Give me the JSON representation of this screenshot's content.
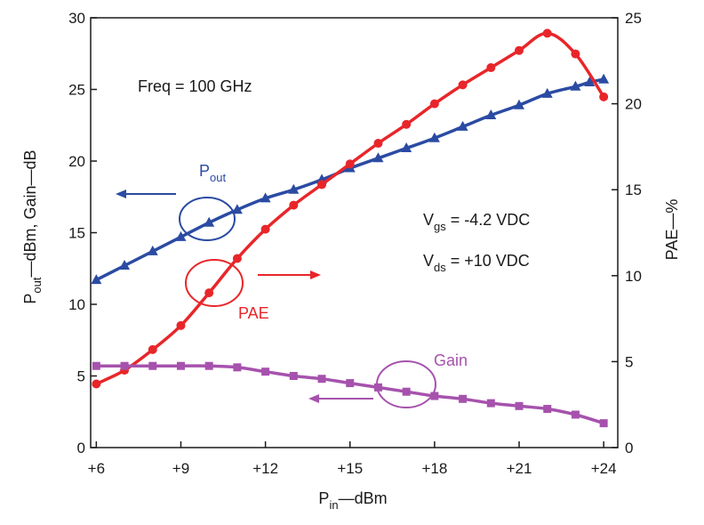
{
  "chart_data": {
    "type": "line",
    "title": "",
    "xlabel": {
      "main": "P",
      "sub": "in",
      "rest": "—dBm"
    },
    "ylabel_left": {
      "main": "P",
      "sub": "out",
      "rest": "—dBm, Gain—dB"
    },
    "ylabel_right": "PAE—%",
    "xlim": [
      5.8,
      24.5
    ],
    "ylim_left": [
      0,
      30
    ],
    "ylim_right": [
      0,
      25
    ],
    "x_ticks": [
      6,
      9,
      12,
      15,
      18,
      21,
      24
    ],
    "x_tick_labels": [
      "+6",
      "+9",
      "+12",
      "+15",
      "+18",
      "+21",
      "+24"
    ],
    "y_ticks_left": [
      0,
      5,
      10,
      15,
      20,
      25,
      30
    ],
    "y_ticks_right": [
      0,
      5,
      10,
      15,
      20,
      25
    ],
    "grid": false,
    "annotations": {
      "freq": "Freq = 100 GHz",
      "vgs": {
        "main": "V",
        "sub": "gs",
        "rest": " = -4.2 VDC"
      },
      "vds": {
        "main": "V",
        "sub": "ds",
        "rest": " = +10 VDC"
      },
      "pout": {
        "main": "P",
        "sub": "out"
      },
      "pae": "PAE",
      "gain": "Gain"
    },
    "series": [
      {
        "name": "Pout",
        "axis": "left",
        "marker": "triangle",
        "color": "#2b4ba3",
        "x": [
          6,
          7,
          8,
          9,
          10,
          11,
          12,
          13,
          14,
          15,
          16,
          17,
          18,
          19,
          20,
          21,
          22,
          23,
          23.5,
          24
        ],
        "y": [
          11.7,
          12.7,
          13.7,
          14.7,
          15.7,
          16.6,
          17.4,
          18.0,
          18.7,
          19.5,
          20.2,
          20.9,
          21.6,
          22.4,
          23.2,
          23.9,
          24.7,
          25.2,
          25.5,
          25.7
        ]
      },
      {
        "name": "PAE",
        "axis": "right",
        "marker": "circle",
        "color": "#e8262a",
        "x": [
          6,
          7,
          8,
          9,
          10,
          11,
          12,
          13,
          14,
          15,
          16,
          17,
          18,
          19,
          20,
          21,
          22,
          23,
          24
        ],
        "y": [
          3.7,
          4.5,
          5.7,
          7.1,
          9.0,
          11.0,
          12.7,
          14.1,
          15.3,
          16.5,
          17.7,
          18.8,
          20.0,
          21.1,
          22.1,
          23.1,
          24.1,
          22.9,
          20.4
        ]
      },
      {
        "name": "Gain",
        "axis": "left",
        "marker": "square",
        "color": "#a652ad",
        "x": [
          6,
          7,
          8,
          9,
          10,
          11,
          12,
          13,
          14,
          15,
          16,
          17,
          18,
          19,
          20,
          21,
          22,
          23,
          24
        ],
        "y": [
          5.7,
          5.7,
          5.7,
          5.7,
          5.7,
          5.6,
          5.3,
          5.0,
          4.8,
          4.5,
          4.2,
          3.9,
          3.6,
          3.4,
          3.1,
          2.9,
          2.7,
          2.3,
          1.7
        ]
      }
    ]
  }
}
